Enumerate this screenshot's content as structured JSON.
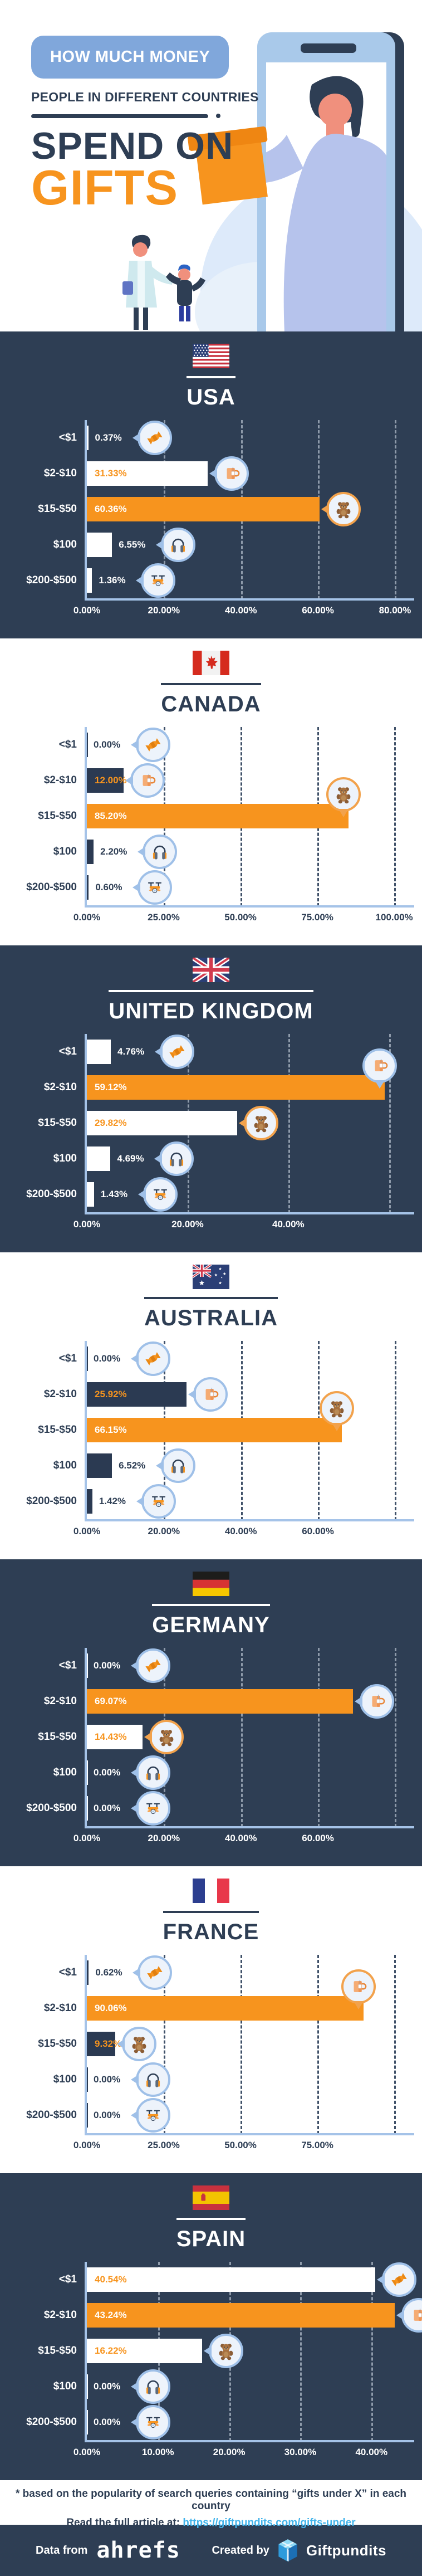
{
  "header": {
    "badge": "HOW MUCH MONEY",
    "subtitle": "PEOPLE IN DIFFERENT COUNTRIES",
    "title_line1": "SPEND ON",
    "title_line2": "GIFTS"
  },
  "colors": {
    "navy_background": "#2e3e54",
    "orange_accent": "#f7941e",
    "axis_light_blue": "#a5c3e8",
    "bubble_ring_blue": "#9fc0e8",
    "bubble_ring_orange": "#f2a24c",
    "bubble_fill": "#edf3fb",
    "badge_blue": "#80a7db",
    "link_blue": "#41b3ea"
  },
  "categories": [
    "<$1",
    "$2-$10",
    "$15-$50",
    "$100",
    "$200-$500"
  ],
  "row_icons": [
    "candy",
    "mug",
    "teddy-bear",
    "headphones",
    "drone"
  ],
  "chart_data": [
    {
      "type": "bar",
      "country": "USA",
      "flag": "us",
      "theme": "dark",
      "categories": [
        "<$1",
        "$2-$10",
        "$15-$50",
        "$100",
        "$200-$500"
      ],
      "values": [
        0.37,
        31.33,
        60.36,
        6.55,
        1.36
      ],
      "value_labels": [
        "0.37%",
        "31.33%",
        "60.36%",
        "6.55%",
        "1.36%"
      ],
      "tick_labels": [
        "0.00%",
        "20.00%",
        "40.00%",
        "60.00%",
        "80.00%"
      ],
      "tick_values": [
        0,
        20,
        40,
        60,
        80
      ],
      "gridlines": [
        20,
        40,
        60,
        80
      ],
      "axis_max": 85,
      "highlight_index": 2,
      "orange_ring_index": 2,
      "top_bubble_index": -1
    },
    {
      "type": "bar",
      "country": "CANADA",
      "flag": "ca",
      "theme": "light",
      "categories": [
        "<$1",
        "$2-$10",
        "$15-$50",
        "$100",
        "$200-$500"
      ],
      "values": [
        0.0,
        12.0,
        85.2,
        2.2,
        0.6
      ],
      "value_labels": [
        "0.00%",
        "12.00%",
        "85.20%",
        "2.20%",
        "0.60%"
      ],
      "tick_labels": [
        "0.00%",
        "25.00%",
        "50.00%",
        "75.00%",
        "100.00%"
      ],
      "tick_values": [
        0,
        25,
        50,
        75,
        100
      ],
      "gridlines": [
        25,
        50,
        75,
        100
      ],
      "axis_max": 106.5,
      "highlight_index": 2,
      "orange_ring_index": 2,
      "top_bubble_index": 2
    },
    {
      "type": "bar",
      "country": "UNITED KINGDOM",
      "flag": "uk",
      "theme": "dark",
      "categories": [
        "<$1",
        "$2-$10",
        "$15-$50",
        "$100",
        "$200-$500"
      ],
      "values": [
        4.76,
        59.12,
        29.82,
        4.69,
        1.43
      ],
      "value_labels": [
        "4.76%",
        "59.12%",
        "29.82%",
        "4.69%",
        "1.43%"
      ],
      "tick_labels": [
        "0.00%",
        "20.00%",
        "40.00%"
      ],
      "tick_values": [
        0,
        20,
        40
      ],
      "gridlines": [
        20,
        40,
        60
      ],
      "axis_max": 65,
      "highlight_index": 1,
      "orange_ring_index": 2,
      "top_bubble_index": 1
    },
    {
      "type": "bar",
      "country": "AUSTRALIA",
      "flag": "au",
      "theme": "light",
      "categories": [
        "<$1",
        "$2-$10",
        "$15-$50",
        "$100",
        "$200-$500"
      ],
      "values": [
        0.0,
        25.92,
        66.15,
        6.52,
        1.42
      ],
      "value_labels": [
        "0.00%",
        "25.92%",
        "66.15%",
        "6.52%",
        "1.42%"
      ],
      "tick_labels": [
        "0.00%",
        "20.00%",
        "40.00%",
        "60.00%"
      ],
      "tick_values": [
        0,
        20,
        40,
        60
      ],
      "gridlines": [
        20,
        40,
        60,
        80
      ],
      "axis_max": 85,
      "highlight_index": 2,
      "orange_ring_index": 2,
      "top_bubble_index": 2
    },
    {
      "type": "bar",
      "country": "GERMANY",
      "flag": "de",
      "theme": "dark",
      "categories": [
        "<$1",
        "$2-$10",
        "$15-$50",
        "$100",
        "$200-$500"
      ],
      "values": [
        0.0,
        69.07,
        14.43,
        0.0,
        0.0
      ],
      "value_labels": [
        "0.00%",
        "69.07%",
        "14.43%",
        "0.00%",
        "0.00%"
      ],
      "tick_labels": [
        "0.00%",
        "20.00%",
        "40.00%",
        "60.00%"
      ],
      "tick_values": [
        0,
        20,
        40,
        60
      ],
      "gridlines": [
        20,
        40,
        60,
        80
      ],
      "axis_max": 85,
      "highlight_index": 1,
      "orange_ring_index": 2,
      "top_bubble_index": -1
    },
    {
      "type": "bar",
      "country": "FRANCE",
      "flag": "fr",
      "theme": "light",
      "categories": [
        "<$1",
        "$2-$10",
        "$15-$50",
        "$100",
        "$200-$500"
      ],
      "values": [
        0.62,
        90.06,
        9.32,
        0.0,
        0.0
      ],
      "value_labels": [
        "0.62%",
        "90.06%",
        "9.32%",
        "0.00%",
        "0.00%"
      ],
      "tick_labels": [
        "0.00%",
        "25.00%",
        "50.00%",
        "75.00%"
      ],
      "tick_values": [
        0,
        25,
        50,
        75
      ],
      "gridlines": [
        25,
        50,
        75,
        100
      ],
      "axis_max": 106.5,
      "highlight_index": 1,
      "orange_ring_index": 1,
      "top_bubble_index": 1
    },
    {
      "type": "bar",
      "country": "SPAIN",
      "flag": "es",
      "theme": "dark",
      "categories": [
        "<$1",
        "$2-$10",
        "$15-$50",
        "$100",
        "$200-$500"
      ],
      "values": [
        40.54,
        43.24,
        16.22,
        0.0,
        0.0
      ],
      "value_labels": [
        "40.54%",
        "43.24%",
        "16.22%",
        "0.00%",
        "0.00%"
      ],
      "tick_labels": [
        "0.00%",
        "10.00%",
        "20.00%",
        "30.00%",
        "40.00%"
      ],
      "tick_values": [
        0,
        10,
        20,
        30,
        40
      ],
      "gridlines": [
        10,
        20,
        30,
        40
      ],
      "axis_max": 46,
      "highlight_index": 1,
      "orange_ring_index": -1,
      "top_bubble_index": -1
    }
  ],
  "footer": {
    "note": "* based on the popularity of search queries containing “gifts under X” in each country",
    "read_prefix": "Read the full article at:",
    "url": "https://giftpundits.com/gifts-under",
    "data_from": "Data from",
    "ahrefs_brand": "ahrefs",
    "created_by": "Created by",
    "giftpundits_brand": "Giftpundits"
  }
}
